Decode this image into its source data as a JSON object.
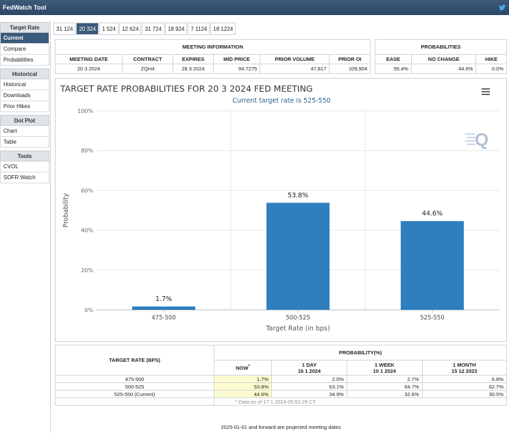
{
  "app": {
    "title": "FedWatch Tool"
  },
  "icons": {
    "twitter": "twitter-icon",
    "menu": "hamburger-menu-icon",
    "logo": "q-logo-icon"
  },
  "colors": {
    "titlebar": "#2f4b6c",
    "active": "#3c5a7c",
    "bar": "#2f7fbf",
    "highlight": "#fbfbd0"
  },
  "sidebar": {
    "target_rate": {
      "head": "Target Rate",
      "items": [
        "Current",
        "Compare",
        "Probabilities"
      ]
    },
    "historical": {
      "head": "Historical",
      "items": [
        "Historical",
        "Downloads",
        "Prior Hikes"
      ]
    },
    "dot_plot": {
      "head": "Dot Plot",
      "items": [
        "Chart",
        "Table"
      ]
    },
    "tools": {
      "head": "Tools",
      "items": [
        "CVOL",
        "SOFR Watch"
      ]
    }
  },
  "tabs": [
    "31 124",
    "20 324",
    "1 524",
    "12 624",
    "31 724",
    "18 924",
    "7 1124",
    "18 1224"
  ],
  "meeting_info": {
    "title": "MEETING INFORMATION",
    "headers": [
      "MEETING DATE",
      "CONTRACT",
      "EXPIRES",
      "MID PRICE",
      "PRIOR VOLUME",
      "PRIOR OI"
    ],
    "row": [
      "20 3 2024",
      "ZQH4",
      "28 3 2024",
      "94.7275",
      "47,817",
      "109,904"
    ]
  },
  "probabilities": {
    "title": "PROBABILITIES",
    "headers": [
      "EASE",
      "NO CHANGE",
      "HIKE"
    ],
    "row": [
      "55.4%",
      "44.6%",
      "0.0%"
    ]
  },
  "chart_data": {
    "type": "bar",
    "title": "TARGET RATE PROBABILITIES FOR 20 3 2024 FED MEETING",
    "subtitle": "Current target rate is 525-550",
    "xlabel": "Target Rate (in bps)",
    "ylabel": "Probability",
    "categories": [
      "475-500",
      "500-525",
      "525-550"
    ],
    "values": [
      1.7,
      53.8,
      44.6
    ],
    "data_labels": [
      "1.7%",
      "53.8%",
      "44.6%"
    ],
    "ylim": [
      0,
      100
    ],
    "yticks": [
      "0%",
      "20%",
      "40%",
      "60%",
      "80%",
      "100%"
    ],
    "grid": true,
    "bar_color": "#2f7fbf"
  },
  "rate_table": {
    "col1": "TARGET RATE (BPS)",
    "prob_head": "PROBABILITY(%)",
    "cols": [
      {
        "l1": "NOW",
        "l2": "",
        "mark": "*"
      },
      {
        "l1": "1 DAY",
        "l2": "16 1 2024"
      },
      {
        "l1": "1 WEEK",
        "l2": "10 1 2024"
      },
      {
        "l1": "1 MONTH",
        "l2": "15 12 2023"
      }
    ],
    "rows": [
      {
        "rate": "475-500",
        "vals": [
          "1.7%",
          "2.0%",
          "2.7%",
          "6.8%"
        ]
      },
      {
        "rate": "500-525",
        "vals": [
          "53.8%",
          "63.1%",
          "64.7%",
          "62.7%"
        ]
      },
      {
        "rate": "525-550 (Current)",
        "vals": [
          "44.6%",
          "34.9%",
          "32.6%",
          "30.5%"
        ]
      }
    ],
    "note": "* Data as of 17 1 2024 05:52:29 CT"
  },
  "footer": "2025-01-01 and forward are projected meeting dates"
}
